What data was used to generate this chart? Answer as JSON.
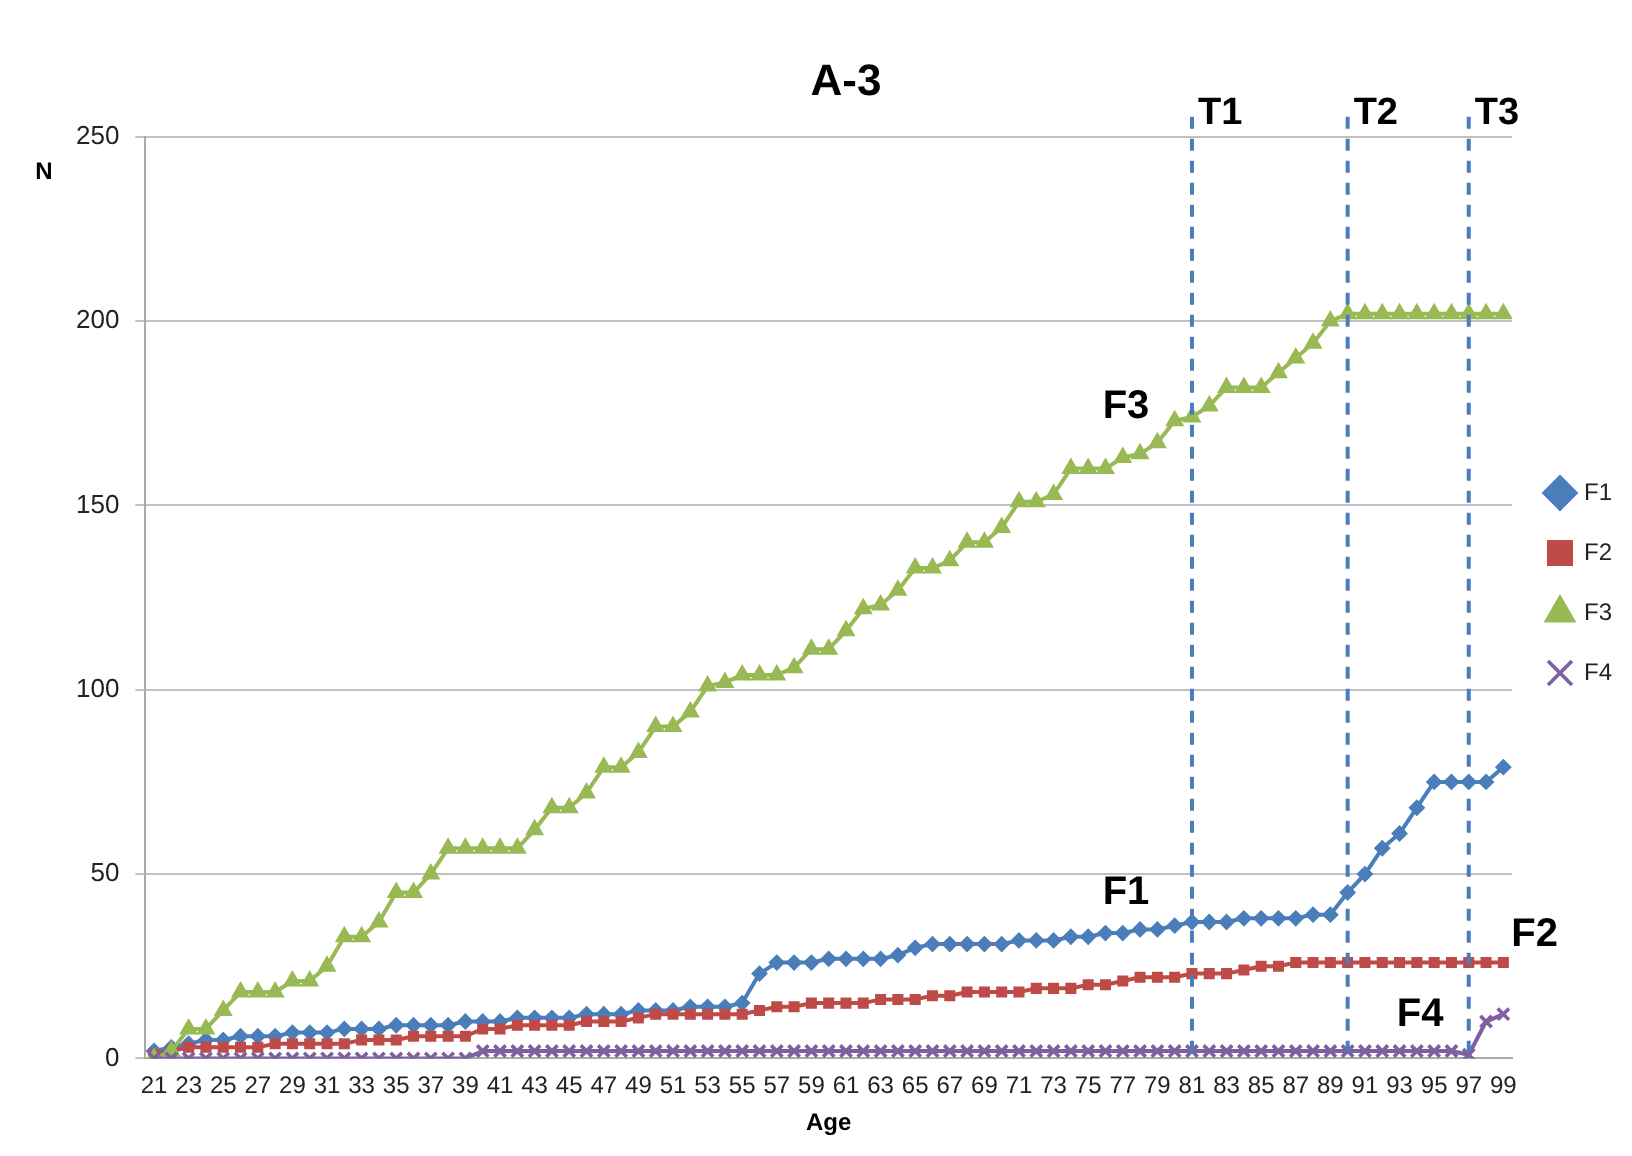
{
  "chart_data": {
    "type": "line",
    "title": "A-3",
    "xlabel": "Age",
    "ylabel": "N",
    "x": [
      21,
      22,
      23,
      24,
      25,
      26,
      27,
      28,
      29,
      30,
      31,
      32,
      33,
      34,
      35,
      36,
      37,
      38,
      39,
      40,
      41,
      42,
      43,
      44,
      45,
      46,
      47,
      48,
      49,
      50,
      51,
      52,
      53,
      54,
      55,
      56,
      57,
      58,
      59,
      60,
      61,
      62,
      63,
      64,
      65,
      66,
      67,
      68,
      69,
      70,
      71,
      72,
      73,
      74,
      75,
      76,
      77,
      78,
      79,
      80,
      81,
      82,
      83,
      84,
      85,
      86,
      87,
      88,
      89,
      90,
      91,
      92,
      93,
      94,
      95,
      96,
      97,
      98,
      99
    ],
    "xlim": [
      20.5,
      99.5
    ],
    "xticks": [
      21,
      23,
      25,
      27,
      29,
      31,
      33,
      35,
      37,
      39,
      41,
      43,
      45,
      47,
      49,
      51,
      53,
      55,
      57,
      59,
      61,
      63,
      65,
      67,
      69,
      71,
      73,
      75,
      77,
      79,
      81,
      83,
      85,
      87,
      89,
      91,
      93,
      95,
      97,
      99
    ],
    "ylim": [
      0,
      250
    ],
    "yticks": [
      0,
      50,
      100,
      150,
      200,
      250
    ],
    "grid": "y",
    "legend": "right",
    "line_style": "solid",
    "series": [
      {
        "name": "F1",
        "color": "#4a7ebb",
        "marker": "diamond",
        "values": [
          2,
          3,
          4,
          5,
          5,
          6,
          6,
          6,
          7,
          7,
          7,
          8,
          8,
          8,
          9,
          9,
          9,
          9,
          10,
          10,
          10,
          11,
          11,
          11,
          11,
          12,
          12,
          12,
          13,
          13,
          13,
          14,
          14,
          14,
          15,
          23,
          26,
          26,
          26,
          27,
          27,
          27,
          27,
          28,
          30,
          31,
          31,
          31,
          31,
          31,
          32,
          32,
          32,
          33,
          33,
          34,
          34,
          35,
          35,
          36,
          37,
          37,
          37,
          38,
          38,
          38,
          38,
          39,
          39,
          45,
          50,
          57,
          61,
          68,
          75,
          75,
          75,
          75,
          79
        ]
      },
      {
        "name": "F2",
        "color": "#be4b48",
        "marker": "square",
        "values": [
          1,
          2,
          3,
          3,
          3,
          3,
          3,
          4,
          4,
          4,
          4,
          4,
          5,
          5,
          5,
          6,
          6,
          6,
          6,
          8,
          8,
          9,
          9,
          9,
          9,
          10,
          10,
          10,
          11,
          12,
          12,
          12,
          12,
          12,
          12,
          13,
          14,
          14,
          15,
          15,
          15,
          15,
          16,
          16,
          16,
          17,
          17,
          18,
          18,
          18,
          18,
          19,
          19,
          19,
          20,
          20,
          21,
          22,
          22,
          22,
          23,
          23,
          23,
          24,
          25,
          25,
          26,
          26,
          26,
          26,
          26,
          26,
          26,
          26,
          26,
          26,
          26,
          26,
          26
        ]
      },
      {
        "name": "F3",
        "color": "#98b954",
        "marker": "triangle",
        "values": [
          0,
          2,
          8,
          8,
          13,
          18,
          18,
          18,
          21,
          21,
          25,
          33,
          33,
          37,
          45,
          45,
          50,
          57,
          57,
          57,
          57,
          57,
          62,
          68,
          68,
          72,
          79,
          79,
          83,
          90,
          90,
          94,
          101,
          102,
          104,
          104,
          104,
          106,
          111,
          111,
          116,
          122,
          123,
          127,
          133,
          133,
          135,
          140,
          140,
          144,
          151,
          151,
          153,
          160,
          160,
          160,
          163,
          164,
          167,
          173,
          174,
          177,
          182,
          182,
          182,
          186,
          190,
          194,
          200,
          202,
          202,
          202,
          202,
          202,
          202,
          202,
          202,
          202,
          202
        ]
      },
      {
        "name": "F4",
        "color": "#7d60a0",
        "marker": "cross",
        "values": [
          0,
          0,
          0,
          0,
          0,
          0,
          0,
          0,
          0,
          0,
          0,
          0,
          0,
          0,
          0,
          0,
          0,
          0,
          0,
          2,
          2,
          2,
          2,
          2,
          2,
          2,
          2,
          2,
          2,
          2,
          2,
          2,
          2,
          2,
          2,
          2,
          2,
          2,
          2,
          2,
          2,
          2,
          2,
          2,
          2,
          2,
          2,
          2,
          2,
          2,
          2,
          2,
          2,
          2,
          2,
          2,
          2,
          2,
          2,
          2,
          2,
          2,
          2,
          2,
          2,
          2,
          2,
          2,
          2,
          2,
          2,
          2,
          2,
          2,
          2,
          2,
          1,
          10,
          12
        ]
      }
    ],
    "ref_lines": [
      {
        "axis": "x",
        "value": 81,
        "label": "T1",
        "color": "#4a7ebb",
        "line_style": "dashed"
      },
      {
        "axis": "x",
        "value": 90,
        "label": "T2",
        "color": "#4a7ebb",
        "line_style": "dashed"
      },
      {
        "axis": "x",
        "value": 97,
        "label": "T3",
        "color": "#4a7ebb",
        "line_style": "dashed"
      }
    ],
    "annotations": [
      {
        "text": "F3",
        "x": 79,
        "y": 167
      },
      {
        "text": "F1",
        "x": 79,
        "y": 35
      },
      {
        "text": "F2",
        "x": 99,
        "y": 26
      },
      {
        "text": "F4",
        "x": 96,
        "y": 2
      }
    ]
  }
}
